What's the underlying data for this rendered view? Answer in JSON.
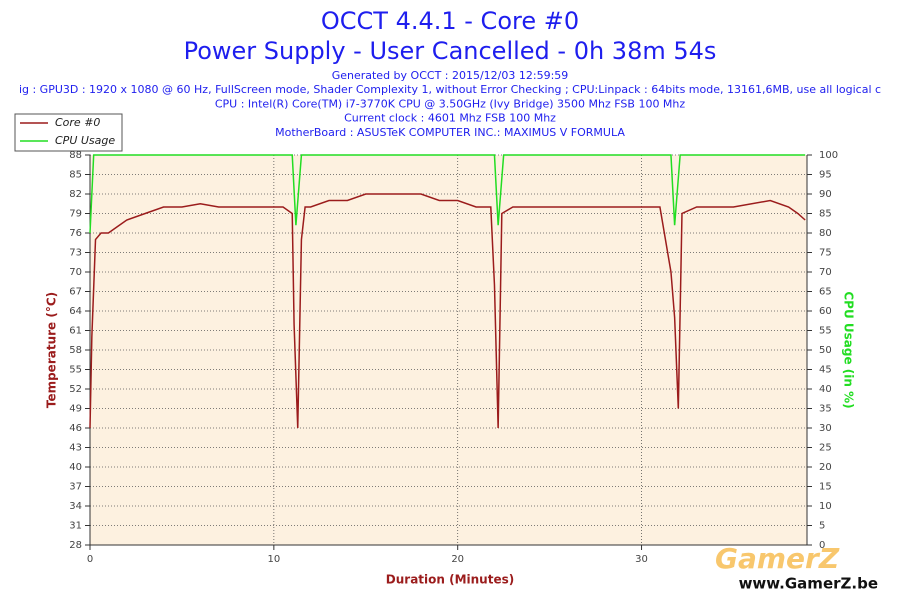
{
  "chart_data": {
    "type": "line",
    "title": "OCCT 4.4.1 - Core #0",
    "subtitle": "Power Supply - User Cancelled - 0h 38m 54s",
    "info_lines": [
      "Generated by OCCT : 2015/12/03 12:59:59",
      "ig : GPU3D : 1920 x 1080 @ 60 Hz, FullScreen mode, Shader Complexity 1, without Error Checking ; CPU:Linpack : 64bits mode, 13161,6MB, use all logical c",
      "CPU : Intel(R) Core(TM) i7-3770K CPU @ 3.50GHz (Ivy Bridge) 3500 Mhz FSB 100 Mhz",
      "Current clock : 4601 Mhz FSB 100 Mhz",
      "MotherBoard : ASUSTeK COMPUTER INC.: MAXIMUS V FORMULA"
    ],
    "xlabel": "Duration (Minutes)",
    "ylabel": "Temperature (°C)",
    "y2label": "CPU Usage (in %)",
    "xlim": [
      0,
      39
    ],
    "xticks": [
      0,
      10,
      20,
      30
    ],
    "ylim": [
      28,
      88
    ],
    "yticks": [
      28,
      31,
      34,
      37,
      40,
      43,
      46,
      49,
      52,
      55,
      58,
      61,
      64,
      67,
      70,
      73,
      76,
      79,
      82,
      85,
      88
    ],
    "y2lim": [
      0,
      100
    ],
    "y2ticks": [
      0,
      5,
      10,
      15,
      20,
      25,
      30,
      35,
      40,
      45,
      50,
      55,
      60,
      65,
      70,
      75,
      80,
      85,
      90,
      95,
      100
    ],
    "grid": true,
    "legend": "top-left",
    "series": [
      {
        "name": "Core #0",
        "color": "#9b1c1c",
        "x": [
          0,
          0.1,
          0.3,
          0.6,
          1,
          1.5,
          2,
          3,
          4,
          5,
          6,
          7,
          8,
          9,
          10,
          10.5,
          11,
          11.1,
          11.3,
          11.5,
          11.7,
          12,
          13,
          14,
          15,
          16,
          17,
          18,
          19,
          20,
          21,
          21.8,
          22,
          22.2,
          22.4,
          23,
          24,
          26,
          28,
          30,
          31,
          31.6,
          31.8,
          32,
          32.2,
          33,
          35,
          37,
          38,
          38.5,
          38.9
        ],
        "values": [
          46,
          60,
          75,
          76,
          76,
          77,
          78,
          79,
          80,
          80,
          80.5,
          80,
          80,
          80,
          80,
          80,
          79,
          62,
          46,
          75,
          80,
          80,
          81,
          81,
          82,
          82,
          82,
          82,
          81,
          81,
          80,
          80,
          68,
          46,
          79,
          80,
          80,
          80,
          80,
          80,
          80,
          70,
          63,
          49,
          79,
          80,
          80,
          81,
          80,
          79,
          78
        ]
      },
      {
        "name": "CPU Usage",
        "color": "#22dd22",
        "axis": "y2",
        "x": [
          0,
          0.2,
          11,
          11.2,
          11.5,
          22,
          22.2,
          22.5,
          31.6,
          31.8,
          32.1,
          38.9
        ],
        "values": [
          80,
          100,
          100,
          82,
          100,
          100,
          82,
          100,
          100,
          82,
          100,
          100
        ]
      }
    ]
  },
  "watermark": {
    "logo": "GamerZ",
    "url": "www.GamerZ.be"
  }
}
